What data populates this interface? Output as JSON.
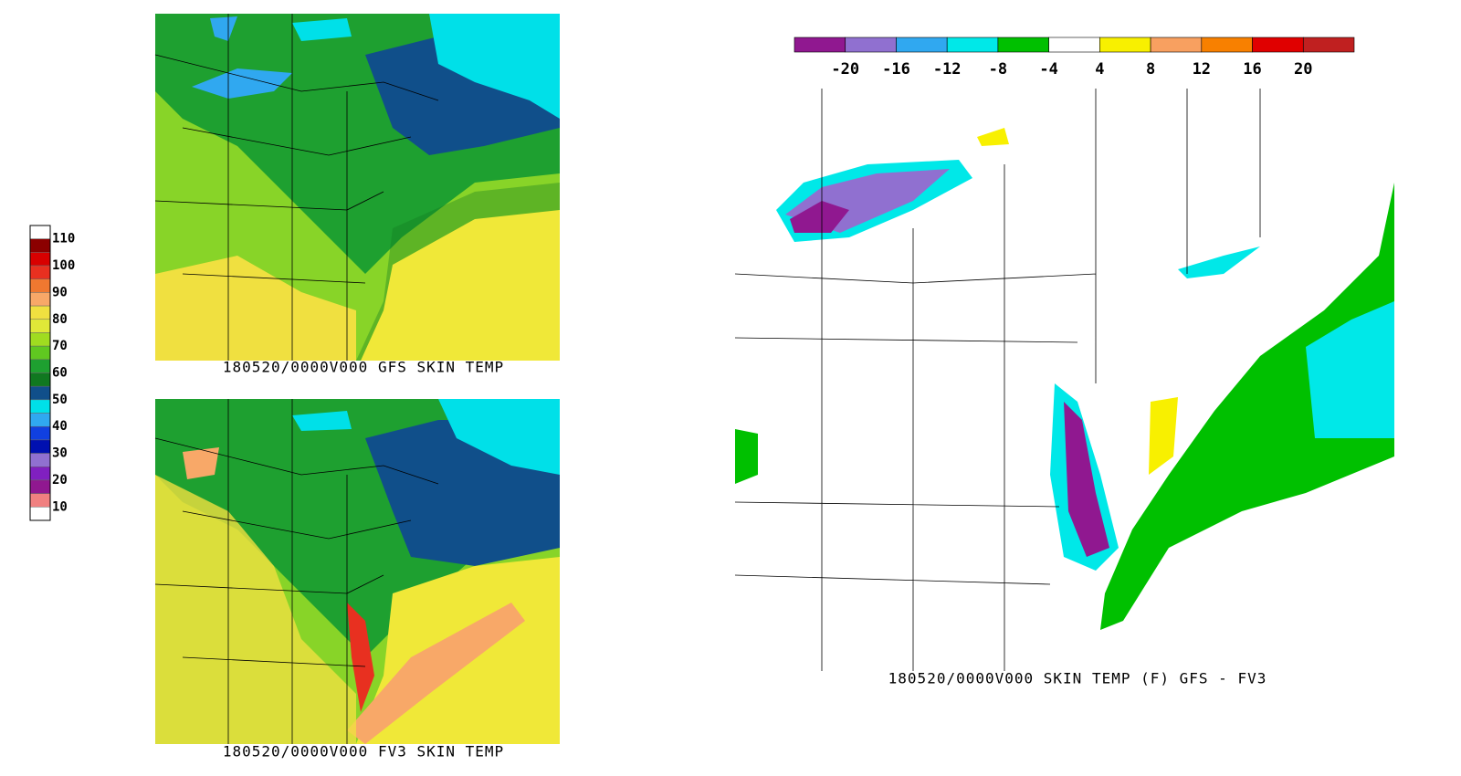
{
  "left_legend": {
    "labels": [
      "110",
      "100",
      "90",
      "80",
      "70",
      "60",
      "50",
      "40",
      "30",
      "20",
      "10"
    ],
    "colors": [
      "#ffffff",
      "#8b0000",
      "#d80000",
      "#e83020",
      "#f07830",
      "#f8a868",
      "#f0e040",
      "#e0e838",
      "#a0dc20",
      "#60c820",
      "#1ea030",
      "#107820",
      "#104f8a",
      "#00e0e8",
      "#30a8f0",
      "#1040e0",
      "#0010b0",
      "#9070d0",
      "#8020c0",
      "#901890",
      "#f08080",
      "#ffffff"
    ]
  },
  "maps": [
    {
      "caption": "180520/0000V000   GFS SKIN  TEMP"
    },
    {
      "caption": "180520/0000V000   FV3   SKIN TEMP"
    },
    {
      "caption": "180520/0000V000 SKIN TEMP (F)   GFS - FV3"
    }
  ],
  "diff_colorbar": {
    "labels": [
      "-20",
      "-16",
      "-12",
      "-8",
      "-4",
      "4",
      "8",
      "12",
      "16",
      "20"
    ],
    "colors": [
      "#901890",
      "#9070d0",
      "#30a8f0",
      "#00e8e8",
      "#00c000",
      "#ffffff",
      "#f8f000",
      "#f8a060",
      "#f88000",
      "#e00000",
      "#c02020"
    ]
  }
}
